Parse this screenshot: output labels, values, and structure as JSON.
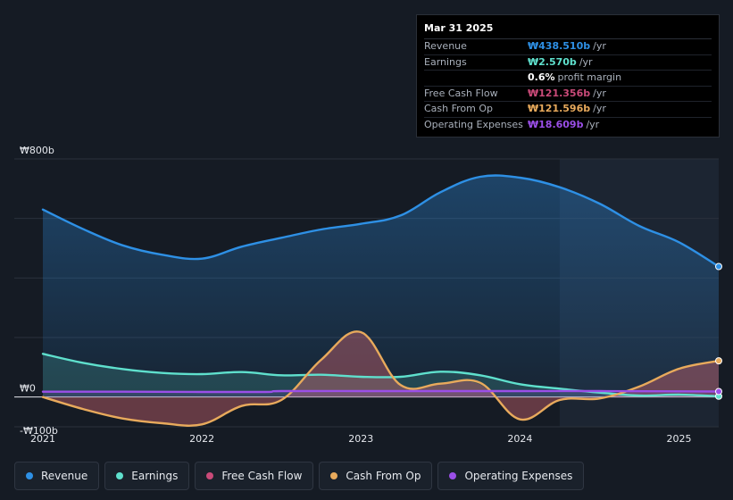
{
  "colors": {
    "revenue": "#2e90e5",
    "earnings": "#5fe0cd",
    "fcf": "#c94a78",
    "cfo": "#e8aa5c",
    "opex": "#9b4fe8"
  },
  "tooltip": {
    "date": "Mar 31 2025",
    "rows": [
      {
        "label": "Revenue",
        "value": "₩438.510b",
        "unit": "/yr",
        "color": "#2e90e5"
      },
      {
        "label": "Earnings",
        "value": "₩2.570b",
        "unit": "/yr",
        "color": "#5fe0cd"
      },
      {
        "label": "",
        "value": "0.6%",
        "unit": "profit margin",
        "color": "#ffffff"
      },
      {
        "label": "Free Cash Flow",
        "value": "₩121.356b",
        "unit": "/yr",
        "color": "#c94a78"
      },
      {
        "label": "Cash From Op",
        "value": "₩121.596b",
        "unit": "/yr",
        "color": "#e8aa5c"
      },
      {
        "label": "Operating Expenses",
        "value": "₩18.609b",
        "unit": "/yr",
        "color": "#9b4fe8"
      }
    ]
  },
  "legend": [
    {
      "label": "Revenue",
      "color": "#2e90e5"
    },
    {
      "label": "Earnings",
      "color": "#5fe0cd"
    },
    {
      "label": "Free Cash Flow",
      "color": "#c94a78"
    },
    {
      "label": "Cash From Op",
      "color": "#e8aa5c"
    },
    {
      "label": "Operating Expenses",
      "color": "#9b4fe8"
    }
  ],
  "chart_data": {
    "type": "area",
    "title": "",
    "xlabel": "",
    "ylabel": "",
    "unit": "KRW billions",
    "ylim": [
      -100,
      800
    ],
    "xlim": [
      2021.0,
      2025.25
    ],
    "y_tick_labels": [
      {
        "value": 800,
        "label": "₩800b"
      },
      {
        "value": 0,
        "label": "₩0"
      },
      {
        "value": -100,
        "label": "-₩100b"
      }
    ],
    "x_tick_labels": [
      {
        "value": 2021,
        "label": "2021"
      },
      {
        "value": 2022,
        "label": "2022"
      },
      {
        "value": 2023,
        "label": "2023"
      },
      {
        "value": 2024,
        "label": "2024"
      },
      {
        "value": 2025,
        "label": "2025"
      }
    ],
    "highlight_start": 2024.25,
    "series": [
      {
        "name": "Revenue",
        "key": "revenue",
        "points": [
          [
            2021.0,
            630
          ],
          [
            2021.25,
            565
          ],
          [
            2021.5,
            510
          ],
          [
            2021.75,
            478
          ],
          [
            2022.0,
            465
          ],
          [
            2022.25,
            505
          ],
          [
            2022.5,
            535
          ],
          [
            2022.75,
            563
          ],
          [
            2023.0,
            582
          ],
          [
            2023.25,
            610
          ],
          [
            2023.5,
            688
          ],
          [
            2023.75,
            740
          ],
          [
            2024.0,
            737
          ],
          [
            2024.25,
            705
          ],
          [
            2024.5,
            650
          ],
          [
            2024.75,
            575
          ],
          [
            2025.0,
            520
          ],
          [
            2025.25,
            438.5
          ]
        ]
      },
      {
        "name": "Earnings",
        "key": "earnings",
        "points": [
          [
            2021.0,
            145
          ],
          [
            2021.25,
            115
          ],
          [
            2021.5,
            94
          ],
          [
            2021.75,
            81
          ],
          [
            2022.0,
            77
          ],
          [
            2022.25,
            84
          ],
          [
            2022.5,
            73
          ],
          [
            2022.75,
            75
          ],
          [
            2023.0,
            68
          ],
          [
            2023.25,
            68
          ],
          [
            2023.5,
            85
          ],
          [
            2023.75,
            73
          ],
          [
            2024.0,
            43
          ],
          [
            2024.25,
            28
          ],
          [
            2024.5,
            15
          ],
          [
            2024.75,
            5
          ],
          [
            2025.0,
            8
          ],
          [
            2025.25,
            2.57
          ]
        ]
      },
      {
        "name": "Free Cash Flow",
        "key": "fcf",
        "points": [
          [
            2021.0,
            0
          ],
          [
            2021.25,
            -40
          ],
          [
            2021.5,
            -72
          ],
          [
            2021.75,
            -88
          ],
          [
            2022.0,
            -92
          ],
          [
            2022.25,
            -30
          ],
          [
            2022.5,
            -10
          ],
          [
            2022.75,
            125
          ],
          [
            2023.0,
            218
          ],
          [
            2023.25,
            40
          ],
          [
            2023.5,
            45
          ],
          [
            2023.75,
            42
          ],
          [
            2024.0,
            -75
          ],
          [
            2024.25,
            -10
          ],
          [
            2024.5,
            -5
          ],
          [
            2024.75,
            35
          ],
          [
            2025.0,
            95
          ],
          [
            2025.25,
            121.356
          ]
        ]
      },
      {
        "name": "Cash From Op",
        "key": "cfo",
        "points": [
          [
            2021.0,
            0
          ],
          [
            2021.25,
            -40
          ],
          [
            2021.5,
            -72
          ],
          [
            2021.75,
            -88
          ],
          [
            2022.0,
            -92
          ],
          [
            2022.25,
            -30
          ],
          [
            2022.5,
            -10
          ],
          [
            2022.75,
            125
          ],
          [
            2023.0,
            218
          ],
          [
            2023.25,
            40
          ],
          [
            2023.5,
            45
          ],
          [
            2023.75,
            48
          ],
          [
            2024.0,
            -75
          ],
          [
            2024.25,
            -10
          ],
          [
            2024.5,
            -5
          ],
          [
            2024.75,
            35
          ],
          [
            2025.0,
            95
          ],
          [
            2025.25,
            121.596
          ]
        ]
      },
      {
        "name": "Operating Expenses",
        "key": "opex",
        "points": [
          [
            2021.0,
            18
          ],
          [
            2021.5,
            18
          ],
          [
            2022.0,
            17
          ],
          [
            2022.4,
            17
          ],
          [
            2022.5,
            20
          ],
          [
            2023.0,
            20
          ],
          [
            2023.5,
            20
          ],
          [
            2024.0,
            20
          ],
          [
            2024.5,
            20
          ],
          [
            2025.0,
            19
          ],
          [
            2025.25,
            18.609
          ]
        ]
      }
    ]
  }
}
